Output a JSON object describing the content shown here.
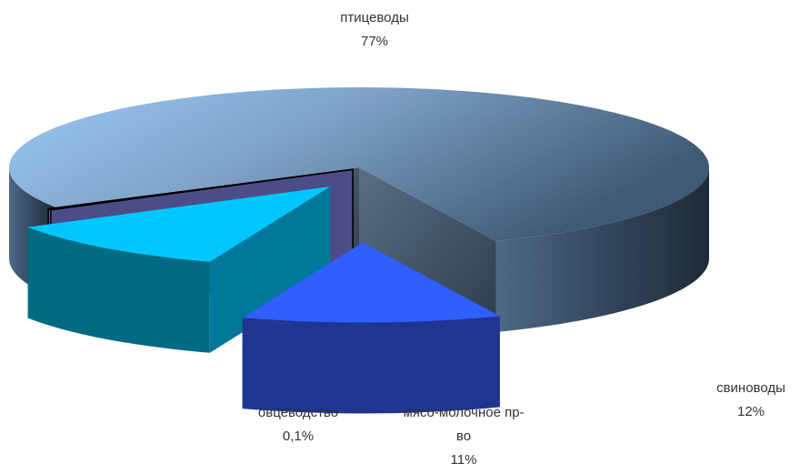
{
  "chart_data": {
    "type": "pie",
    "style": "3d-exploded",
    "title": "",
    "legend": "none",
    "slices": [
      {
        "name": "птицеводы",
        "label_lines": [
          "птицеводы"
        ],
        "value": 77,
        "value_label": "77%",
        "color": "#6E8DAD"
      },
      {
        "name": "свиноводы",
        "label_lines": [
          "свиноводы"
        ],
        "value": 12,
        "value_label": "12%",
        "color": "#2F5FFF"
      },
      {
        "name": "мясо-молочное пр-во",
        "label_lines": [
          "мясо-молочное пр-",
          "во"
        ],
        "value": 11,
        "value_label": "11%",
        "color": "#00C8FF"
      },
      {
        "name": "овцеводство",
        "label_lines": [
          "овцеводство"
        ],
        "value": 0.1,
        "value_label": "0,1%",
        "color": "#5B5C99"
      }
    ]
  }
}
